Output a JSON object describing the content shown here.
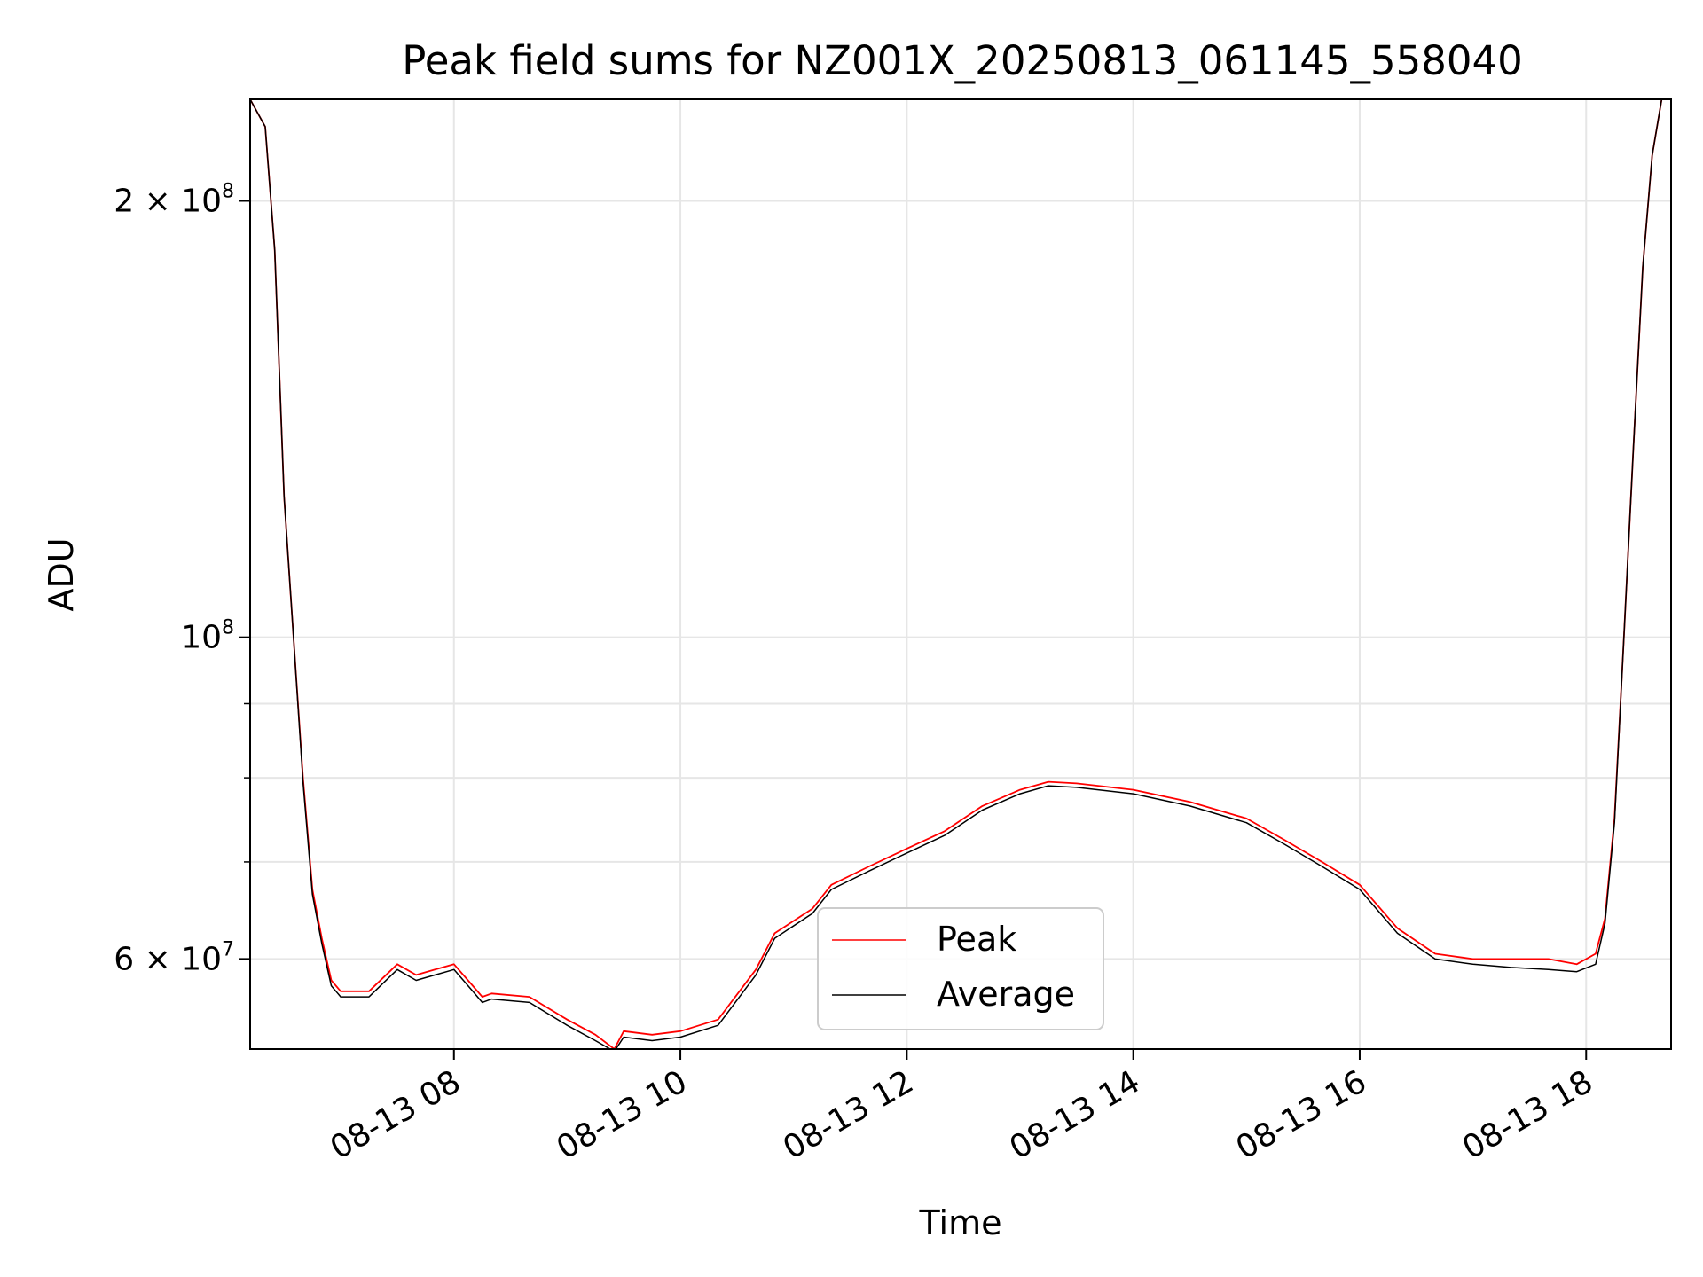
{
  "chart_data": {
    "type": "line",
    "title": "Peak field sums for NZ001X_20250813_061145_558040",
    "xlabel": "Time",
    "ylabel": "ADU",
    "x_type": "datetime",
    "x_range": [
      "2025-08-13 06:12",
      "2025-08-13 18:45"
    ],
    "y_scale": "log",
    "ylim": [
      52000000,
      235000000
    ],
    "x_ticks": [
      {
        "t": "2025-08-13 08:00",
        "label": "08-13 08"
      },
      {
        "t": "2025-08-13 10:00",
        "label": "08-13 10"
      },
      {
        "t": "2025-08-13 12:00",
        "label": "08-13 12"
      },
      {
        "t": "2025-08-13 14:00",
        "label": "08-13 14"
      },
      {
        "t": "2025-08-13 16:00",
        "label": "08-13 16"
      },
      {
        "t": "2025-08-13 18:00",
        "label": "08-13 18"
      }
    ],
    "y_major_ticks": [
      {
        "value": 60000000,
        "base": "6 × 10",
        "exp": "7"
      },
      {
        "value": 100000000,
        "base": "10",
        "exp": "8"
      },
      {
        "value": 200000000,
        "base": "2 × 10",
        "exp": "8"
      }
    ],
    "y_minor_ticks": [
      70000000,
      80000000,
      90000000
    ],
    "grid": true,
    "legend": {
      "position": "lower-center"
    },
    "series": [
      {
        "name": "Peak",
        "color": "#ff0000",
        "x": [
          "2025-08-13 06:12",
          "2025-08-13 06:20",
          "2025-08-13 06:25",
          "2025-08-13 06:30",
          "2025-08-13 06:35",
          "2025-08-13 06:40",
          "2025-08-13 06:45",
          "2025-08-13 06:50",
          "2025-08-13 06:55",
          "2025-08-13 07:00",
          "2025-08-13 07:15",
          "2025-08-13 07:30",
          "2025-08-13 07:40",
          "2025-08-13 07:50",
          "2025-08-13 08:00",
          "2025-08-13 08:10",
          "2025-08-13 08:15",
          "2025-08-13 08:20",
          "2025-08-13 08:40",
          "2025-08-13 09:00",
          "2025-08-13 09:15",
          "2025-08-13 09:25",
          "2025-08-13 09:30",
          "2025-08-13 09:45",
          "2025-08-13 10:00",
          "2025-08-13 10:20",
          "2025-08-13 10:40",
          "2025-08-13 10:50",
          "2025-08-13 11:10",
          "2025-08-13 11:20",
          "2025-08-13 11:40",
          "2025-08-13 12:00",
          "2025-08-13 12:20",
          "2025-08-13 12:40",
          "2025-08-13 13:00",
          "2025-08-13 13:15",
          "2025-08-13 13:30",
          "2025-08-13 14:00",
          "2025-08-13 14:30",
          "2025-08-13 15:00",
          "2025-08-13 15:20",
          "2025-08-13 15:40",
          "2025-08-13 16:00",
          "2025-08-13 16:20",
          "2025-08-13 16:40",
          "2025-08-13 17:00",
          "2025-08-13 17:20",
          "2025-08-13 17:40",
          "2025-08-13 17:55",
          "2025-08-13 18:05",
          "2025-08-13 18:10",
          "2025-08-13 18:15",
          "2025-08-13 18:20",
          "2025-08-13 18:25",
          "2025-08-13 18:30",
          "2025-08-13 18:35",
          "2025-08-13 18:40",
          "2025-08-13 18:45"
        ],
        "y": [
          235000000,
          225000000,
          185000000,
          125000000,
          100000000,
          80000000,
          67000000,
          62000000,
          58000000,
          57000000,
          57000000,
          59500000,
          58500000,
          59000000,
          59500000,
          57500000,
          56500000,
          56800000,
          56500000,
          54500000,
          53200000,
          52000000,
          53500000,
          53200000,
          53500000,
          54500000,
          59000000,
          62500000,
          65000000,
          67500000,
          69500000,
          71500000,
          73500000,
          76500000,
          78500000,
          79500000,
          79300000,
          78500000,
          77000000,
          75000000,
          72500000,
          70000000,
          67500000,
          63000000,
          60500000,
          60000000,
          60000000,
          60000000,
          59500000,
          60500000,
          64000000,
          75000000,
          100000000,
          135000000,
          180000000,
          215000000,
          235000000,
          235000000
        ]
      },
      {
        "name": "Average",
        "color": "#000000",
        "x": [
          "2025-08-13 06:12",
          "2025-08-13 06:20",
          "2025-08-13 06:25",
          "2025-08-13 06:30",
          "2025-08-13 06:35",
          "2025-08-13 06:40",
          "2025-08-13 06:45",
          "2025-08-13 06:50",
          "2025-08-13 06:55",
          "2025-08-13 07:00",
          "2025-08-13 07:15",
          "2025-08-13 07:30",
          "2025-08-13 07:40",
          "2025-08-13 07:50",
          "2025-08-13 08:00",
          "2025-08-13 08:10",
          "2025-08-13 08:15",
          "2025-08-13 08:20",
          "2025-08-13 08:40",
          "2025-08-13 09:00",
          "2025-08-13 09:15",
          "2025-08-13 09:25",
          "2025-08-13 09:30",
          "2025-08-13 09:45",
          "2025-08-13 10:00",
          "2025-08-13 10:20",
          "2025-08-13 10:40",
          "2025-08-13 10:50",
          "2025-08-13 11:10",
          "2025-08-13 11:20",
          "2025-08-13 11:40",
          "2025-08-13 12:00",
          "2025-08-13 12:20",
          "2025-08-13 12:40",
          "2025-08-13 13:00",
          "2025-08-13 13:15",
          "2025-08-13 13:30",
          "2025-08-13 14:00",
          "2025-08-13 14:30",
          "2025-08-13 15:00",
          "2025-08-13 15:20",
          "2025-08-13 15:40",
          "2025-08-13 16:00",
          "2025-08-13 16:20",
          "2025-08-13 16:40",
          "2025-08-13 17:00",
          "2025-08-13 17:20",
          "2025-08-13 17:40",
          "2025-08-13 17:55",
          "2025-08-13 18:05",
          "2025-08-13 18:10",
          "2025-08-13 18:15",
          "2025-08-13 18:20",
          "2025-08-13 18:25",
          "2025-08-13 18:30",
          "2025-08-13 18:35",
          "2025-08-13 18:40",
          "2025-08-13 18:45"
        ],
        "y": [
          235000000,
          225000000,
          185000000,
          125000000,
          100000000,
          79500000,
          66500000,
          61500000,
          57500000,
          56500000,
          56500000,
          59000000,
          58000000,
          58500000,
          59000000,
          57000000,
          56000000,
          56300000,
          56000000,
          54000000,
          52700000,
          51800000,
          53000000,
          52700000,
          53000000,
          54000000,
          58500000,
          62000000,
          64500000,
          67000000,
          69000000,
          71000000,
          73000000,
          76000000,
          78000000,
          79000000,
          78800000,
          78000000,
          76500000,
          74500000,
          72000000,
          69500000,
          67000000,
          62500000,
          60000000,
          59500000,
          59200000,
          59000000,
          58800000,
          59500000,
          63500000,
          74500000,
          100000000,
          135000000,
          180000000,
          215000000,
          235000000,
          235000000
        ]
      }
    ]
  }
}
